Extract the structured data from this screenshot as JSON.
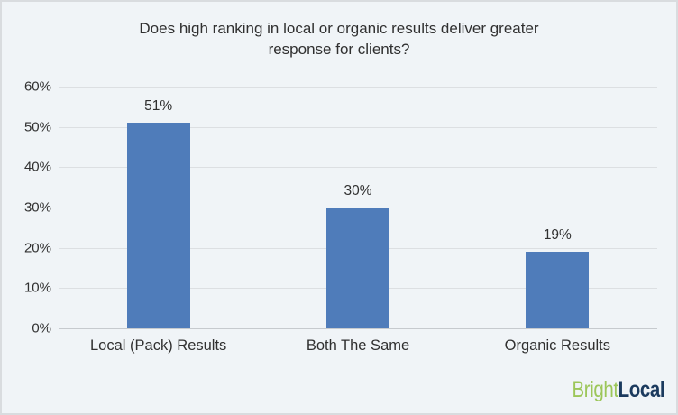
{
  "chart": {
    "title_lines": [
      "Does high ranking in local or organic results deliver greater",
      "response for clients?"
    ]
  },
  "chart_data": {
    "type": "bar",
    "title": "Does high ranking in local or organic results deliver greater response for clients?",
    "categories": [
      "Local (Pack) Results",
      "Both The Same",
      "Organic Results"
    ],
    "values": [
      51,
      30,
      19
    ],
    "value_labels": [
      "51%",
      "30%",
      "19%"
    ],
    "xlabel": "",
    "ylabel": "",
    "ylim": [
      0,
      60
    ],
    "ytick_step": 10,
    "y_tick_labels": [
      "0%",
      "10%",
      "20%",
      "30%",
      "40%",
      "50%",
      "60%"
    ],
    "grid": true,
    "legend": false,
    "bar_color": "#4f7cba"
  },
  "footer": {
    "logo": {
      "bright": "Bright",
      "local": "Local"
    }
  },
  "colors": {
    "background": "#f0f4f7",
    "border": "#d9dcdf",
    "gridline": "#dcdfe2",
    "baseline": "#c6cace",
    "bar": "#4f7cba",
    "text": "#303030",
    "logo_green": "#9cc659",
    "logo_navy": "#1b3a5e"
  }
}
